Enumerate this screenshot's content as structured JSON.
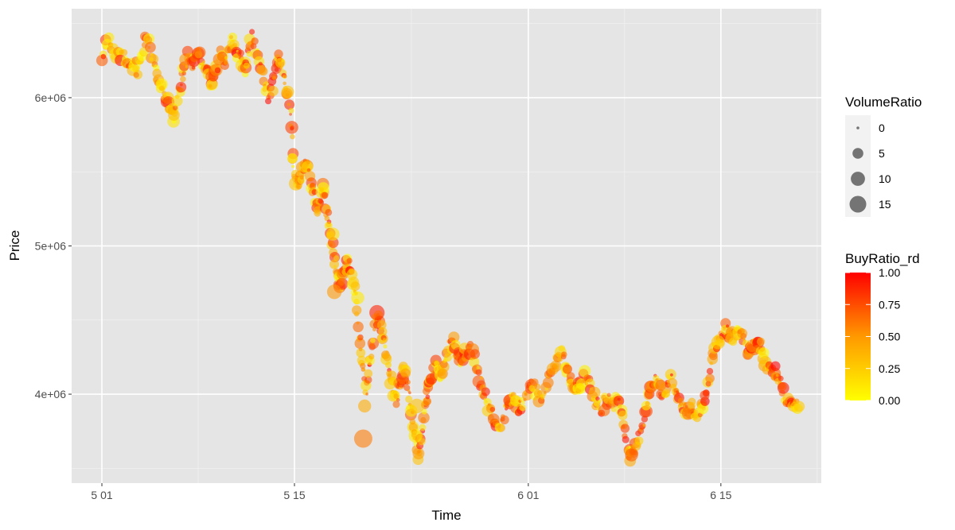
{
  "chart_data": {
    "type": "scatter",
    "xlabel": "Time",
    "ylabel": "Price",
    "x_ticks": [
      {
        "label": "5 01",
        "day": 0
      },
      {
        "label": "5 15",
        "day": 14
      },
      {
        "label": "6 01",
        "day": 31
      },
      {
        "label": "6 15",
        "day": 45
      }
    ],
    "y_ticks": [
      {
        "label": "4e+06",
        "value": 4000000
      },
      {
        "label": "5e+06",
        "value": 5000000
      },
      {
        "label": "6e+06",
        "value": 6000000
      }
    ],
    "xlim_days": [
      -2.2,
      52.3
    ],
    "ylim": [
      3400000,
      6600000
    ],
    "grid": true,
    "panel_background": "#e5e5e5",
    "size_legend": {
      "title": "VolumeRatio",
      "labels": [
        "0",
        "5",
        "10",
        "15"
      ],
      "values": [
        0,
        5,
        10,
        15
      ]
    },
    "color_legend": {
      "title": "BuyRatio_rd",
      "labels": [
        "1.00",
        "0.75",
        "0.50",
        "0.25",
        "0.00"
      ],
      "values": [
        1.0,
        0.75,
        0.5,
        0.25,
        0.0
      ],
      "low_color": "#ffff00",
      "high_color": "#ff0000"
    },
    "legend_position": "right",
    "price_path": [
      [
        0.0,
        6250000
      ],
      [
        0.4,
        6380000
      ],
      [
        0.8,
        6300000
      ],
      [
        1.3,
        6300000
      ],
      [
        1.7,
        6250000
      ],
      [
        2.0,
        6200000
      ],
      [
        2.3,
        6230000
      ],
      [
        2.6,
        6180000
      ],
      [
        2.9,
        6300000
      ],
      [
        3.2,
        6420000
      ],
      [
        3.5,
        6330000
      ],
      [
        3.8,
        6230000
      ],
      [
        4.1,
        6120000
      ],
      [
        4.4,
        6060000
      ],
      [
        4.7,
        6000000
      ],
      [
        5.0,
        5940000
      ],
      [
        5.2,
        5850000
      ],
      [
        5.5,
        6000000
      ],
      [
        5.8,
        6100000
      ],
      [
        6.0,
        6200000
      ],
      [
        6.3,
        6300000
      ],
      [
        6.6,
        6220000
      ],
      [
        6.9,
        6330000
      ],
      [
        7.2,
        6250000
      ],
      [
        7.5,
        6200000
      ],
      [
        7.8,
        6120000
      ],
      [
        8.0,
        6100000
      ],
      [
        8.3,
        6200000
      ],
      [
        8.6,
        6310000
      ],
      [
        8.9,
        6230000
      ],
      [
        9.2,
        6300000
      ],
      [
        9.5,
        6380000
      ],
      [
        9.8,
        6320000
      ],
      [
        10.1,
        6270000
      ],
      [
        10.4,
        6180000
      ],
      [
        10.6,
        6300000
      ],
      [
        10.9,
        6420000
      ],
      [
        11.2,
        6330000
      ],
      [
        11.5,
        6200000
      ],
      [
        11.8,
        6100000
      ],
      [
        12.1,
        6020000
      ],
      [
        12.4,
        6080000
      ],
      [
        12.7,
        6180000
      ],
      [
        12.9,
        6280000
      ],
      [
        13.2,
        6200000
      ],
      [
        13.4,
        6080000
      ],
      [
        13.6,
        5990000
      ],
      [
        13.8,
        5800000
      ],
      [
        13.9,
        5550000
      ],
      [
        14.1,
        5450000
      ],
      [
        14.3,
        5420000
      ],
      [
        14.5,
        5480000
      ],
      [
        14.7,
        5530000
      ],
      [
        14.9,
        5580000
      ],
      [
        15.1,
        5470000
      ],
      [
        15.3,
        5400000
      ],
      [
        15.5,
        5320000
      ],
      [
        15.7,
        5260000
      ],
      [
        15.9,
        5320000
      ],
      [
        16.1,
        5400000
      ],
      [
        16.3,
        5270000
      ],
      [
        16.5,
        5140000
      ],
      [
        16.6,
        5050000
      ],
      [
        16.8,
        4960000
      ],
      [
        17.0,
        4880000
      ],
      [
        17.2,
        4790000
      ],
      [
        17.4,
        4720000
      ],
      [
        17.6,
        4820000
      ],
      [
        17.8,
        4900000
      ],
      [
        18.0,
        4870000
      ],
      [
        18.2,
        4780000
      ],
      [
        18.4,
        4700000
      ],
      [
        18.6,
        4450000
      ],
      [
        18.8,
        4310000
      ],
      [
        19.0,
        4150000
      ],
      [
        19.2,
        4000000
      ],
      [
        19.4,
        4180000
      ],
      [
        19.6,
        4300000
      ],
      [
        19.8,
        4460000
      ],
      [
        20.0,
        4510000
      ],
      [
        20.2,
        4480000
      ],
      [
        20.4,
        4400000
      ],
      [
        20.6,
        4300000
      ],
      [
        20.8,
        4200000
      ],
      [
        21.0,
        4100000
      ],
      [
        21.2,
        4020000
      ],
      [
        21.4,
        3960000
      ],
      [
        21.6,
        4050000
      ],
      [
        21.8,
        4120000
      ],
      [
        22.0,
        4160000
      ],
      [
        22.2,
        4080000
      ],
      [
        22.4,
        3950000
      ],
      [
        22.6,
        3820000
      ],
      [
        22.8,
        3700000
      ],
      [
        23.0,
        3580000
      ],
      [
        23.2,
        3720000
      ],
      [
        23.4,
        3880000
      ],
      [
        23.6,
        3980000
      ],
      [
        23.8,
        4040000
      ],
      [
        24.0,
        4120000
      ],
      [
        24.3,
        4200000
      ],
      [
        24.6,
        4130000
      ],
      [
        24.9,
        4200000
      ],
      [
        25.2,
        4300000
      ],
      [
        25.5,
        4380000
      ],
      [
        25.8,
        4270000
      ],
      [
        26.1,
        4200000
      ],
      [
        26.4,
        4280000
      ],
      [
        26.7,
        4330000
      ],
      [
        27.0,
        4250000
      ],
      [
        27.3,
        4140000
      ],
      [
        27.6,
        4060000
      ],
      [
        27.9,
        3980000
      ],
      [
        28.2,
        3900000
      ],
      [
        28.5,
        3840000
      ],
      [
        28.8,
        3770000
      ],
      [
        29.1,
        3830000
      ],
      [
        29.4,
        3920000
      ],
      [
        29.7,
        3980000
      ],
      [
        30.0,
        3940000
      ],
      [
        30.3,
        3880000
      ],
      [
        30.6,
        3950000
      ],
      [
        30.9,
        4020000
      ],
      [
        31.2,
        4060000
      ],
      [
        31.5,
        4030000
      ],
      [
        31.8,
        3980000
      ],
      [
        32.1,
        4020000
      ],
      [
        32.4,
        4080000
      ],
      [
        32.7,
        4140000
      ],
      [
        33.0,
        4220000
      ],
      [
        33.3,
        4290000
      ],
      [
        33.6,
        4230000
      ],
      [
        33.9,
        4150000
      ],
      [
        34.2,
        4080000
      ],
      [
        34.5,
        4030000
      ],
      [
        34.8,
        4070000
      ],
      [
        35.1,
        4120000
      ],
      [
        35.4,
        4060000
      ],
      [
        35.7,
        3990000
      ],
      [
        36.0,
        3940000
      ],
      [
        36.3,
        3900000
      ],
      [
        36.6,
        3950000
      ],
      [
        36.9,
        3990000
      ],
      [
        37.2,
        3920000
      ],
      [
        37.5,
        3970000
      ],
      [
        37.8,
        3910000
      ],
      [
        38.0,
        3760000
      ],
      [
        38.2,
        3620000
      ],
      [
        38.4,
        3570000
      ],
      [
        38.7,
        3620000
      ],
      [
        39.0,
        3700000
      ],
      [
        39.3,
        3800000
      ],
      [
        39.6,
        3960000
      ],
      [
        39.9,
        4060000
      ],
      [
        40.2,
        4110000
      ],
      [
        40.5,
        4050000
      ],
      [
        40.8,
        3990000
      ],
      [
        41.1,
        4060000
      ],
      [
        41.4,
        4100000
      ],
      [
        41.7,
        4040000
      ],
      [
        42.0,
        3960000
      ],
      [
        42.3,
        3900000
      ],
      [
        42.6,
        3870000
      ],
      [
        42.9,
        3920000
      ],
      [
        43.2,
        3870000
      ],
      [
        43.5,
        3900000
      ],
      [
        43.8,
        3950000
      ],
      [
        44.1,
        4100000
      ],
      [
        44.4,
        4260000
      ],
      [
        44.7,
        4320000
      ],
      [
        45.0,
        4380000
      ],
      [
        45.3,
        4440000
      ],
      [
        45.6,
        4410000
      ],
      [
        45.9,
        4390000
      ],
      [
        46.2,
        4420000
      ],
      [
        46.5,
        4380000
      ],
      [
        46.8,
        4310000
      ],
      [
        47.1,
        4270000
      ],
      [
        47.4,
        4330000
      ],
      [
        47.7,
        4360000
      ],
      [
        48.0,
        4280000
      ],
      [
        48.3,
        4200000
      ],
      [
        48.6,
        4140000
      ],
      [
        48.9,
        4160000
      ],
      [
        49.2,
        4100000
      ],
      [
        49.5,
        4020000
      ],
      [
        49.8,
        3950000
      ],
      [
        50.1,
        3900000
      ],
      [
        50.4,
        3920000
      ],
      [
        50.7,
        3960000
      ]
    ],
    "notable_points": [
      {
        "x": 13.8,
        "y": 5800000,
        "volume_ratio": 6,
        "buy_ratio": 0.8
      },
      {
        "x": 14.1,
        "y": 5420000,
        "volume_ratio": 7,
        "buy_ratio": 0.3
      },
      {
        "x": 16.8,
        "y": 5080000,
        "volume_ratio": 6,
        "buy_ratio": 0.15
      },
      {
        "x": 16.9,
        "y": 4690000,
        "volume_ratio": 8,
        "buy_ratio": 0.5
      },
      {
        "x": 18.6,
        "y": 4650000,
        "volume_ratio": 6,
        "buy_ratio": 0.1
      },
      {
        "x": 19.0,
        "y": 3700000,
        "volume_ratio": 14,
        "buy_ratio": 0.6
      },
      {
        "x": 19.1,
        "y": 3920000,
        "volume_ratio": 6,
        "buy_ratio": 0.4
      },
      {
        "x": 20.0,
        "y": 4550000,
        "volume_ratio": 9,
        "buy_ratio": 0.9
      },
      {
        "x": 22.9,
        "y": 3920000,
        "volume_ratio": 8,
        "buy_ratio": 0.3
      },
      {
        "x": 22.8,
        "y": 3720000,
        "volume_ratio": 7,
        "buy_ratio": 0.1
      },
      {
        "x": 44.8,
        "y": 4350000,
        "volume_ratio": 7,
        "buy_ratio": 0.3
      },
      {
        "x": 38.5,
        "y": 3590000,
        "volume_ratio": 6,
        "buy_ratio": 0.7
      }
    ]
  }
}
